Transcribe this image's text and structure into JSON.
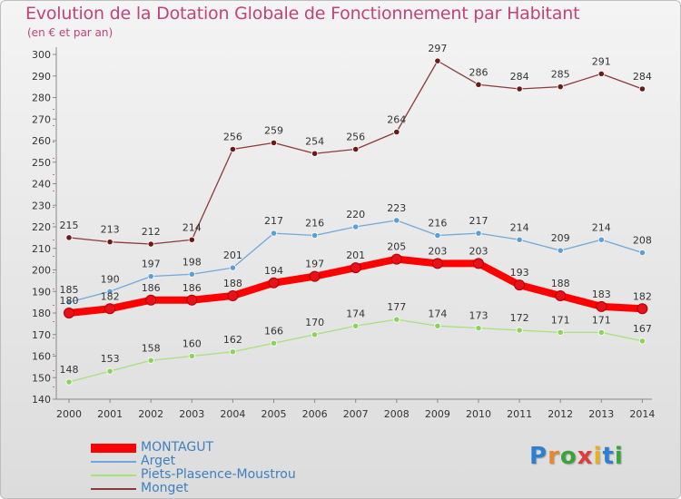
{
  "title": "Evolution de la Dotation Globale de Fonctionnement par Habitant",
  "subtitle": "(en € et par an)",
  "logo": {
    "letters": [
      "P",
      "r",
      "o",
      "x",
      "i",
      "t",
      "i"
    ],
    "colors": [
      "#2f7fd0",
      "#e8872d",
      "#3aa43a",
      "#e03c3c",
      "#e8b020",
      "#2f7fd0",
      "#3aa43a"
    ]
  },
  "chart_data": {
    "type": "line",
    "x": [
      2000,
      2001,
      2002,
      2003,
      2004,
      2005,
      2006,
      2007,
      2008,
      2009,
      2010,
      2011,
      2012,
      2013,
      2014
    ],
    "ylim": [
      140,
      300
    ],
    "yticks": [
      140,
      150,
      160,
      170,
      180,
      190,
      200,
      210,
      220,
      230,
      240,
      250,
      260,
      270,
      280,
      290,
      300
    ],
    "grid": false,
    "legend_position": "bottom-left",
    "series": [
      {
        "name": "MONTAGUT",
        "color": "#ff0000",
        "marker": "#e8101a",
        "emphasis": true,
        "values": [
          180,
          182,
          186,
          186,
          188,
          194,
          197,
          201,
          205,
          203,
          203,
          193,
          188,
          183,
          182
        ]
      },
      {
        "name": "Arget",
        "color": "#6fa8dc",
        "marker": "#5a9fd6",
        "emphasis": false,
        "values": [
          185,
          190,
          197,
          198,
          201,
          217,
          216,
          220,
          223,
          216,
          217,
          214,
          209,
          214,
          208
        ]
      },
      {
        "name": "Piets-Plasence-Moustrou",
        "color": "#a8e07a",
        "marker": "#8bd35a",
        "emphasis": false,
        "values": [
          148,
          153,
          158,
          160,
          162,
          166,
          170,
          174,
          177,
          174,
          173,
          172,
          171,
          171,
          167
        ]
      },
      {
        "name": "Monget",
        "color": "#8b3a3a",
        "marker": "#6b1a1a",
        "emphasis": false,
        "values": [
          215,
          213,
          212,
          214,
          256,
          259,
          254,
          256,
          264,
          297,
          286,
          284,
          285,
          291,
          284
        ]
      }
    ],
    "draw_order": [
      3,
      1,
      2,
      0
    ]
  }
}
